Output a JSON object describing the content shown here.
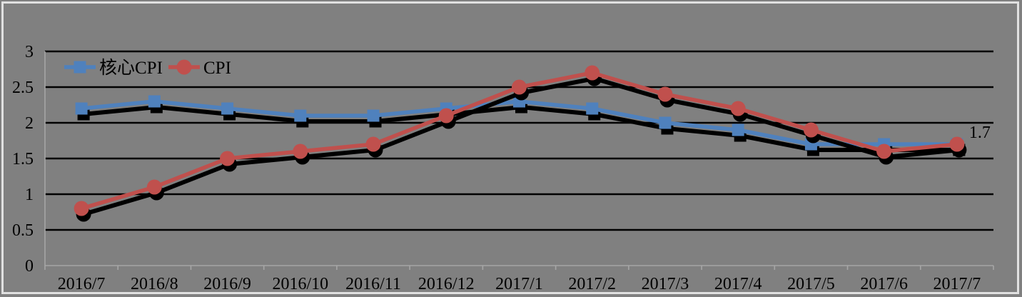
{
  "chart_data": {
    "type": "line",
    "title": "",
    "xlabel": "",
    "ylabel": "",
    "categories": [
      "2016/7",
      "2016/8",
      "2016/9",
      "2016/10",
      "2016/11",
      "2016/12",
      "2017/1",
      "2017/2",
      "2017/3",
      "2017/4",
      "2017/5",
      "2017/6",
      "2017/7"
    ],
    "series": [
      {
        "id": "core-cpi",
        "name": "核心CPI",
        "color": "#4f81bd",
        "marker": "square",
        "values": [
          2.2,
          2.3,
          2.2,
          2.1,
          2.1,
          2.2,
          2.3,
          2.2,
          2.0,
          1.9,
          1.7,
          1.7,
          1.7
        ]
      },
      {
        "id": "cpi",
        "name": "CPI",
        "color": "#c0504d",
        "marker": "circle",
        "values": [
          0.8,
          1.1,
          1.5,
          1.6,
          1.7,
          2.1,
          2.5,
          2.7,
          2.4,
          2.2,
          1.9,
          1.6,
          1.7
        ]
      }
    ],
    "ylim": [
      0,
      3
    ],
    "yticks": [
      "0",
      "0.5",
      "1",
      "1.5",
      "2",
      "2.5",
      "3"
    ],
    "grid": "horizontal-only",
    "legend_position": "top-left-inside",
    "annotations": [
      {
        "text": "1.7",
        "series": "cpi",
        "category": "2017/7",
        "position": "right-of-last-point"
      }
    ]
  },
  "style": {
    "background_color": "#808080",
    "gridline_color": "#000000",
    "axis_color": "#a6a6a6",
    "text_color": "#000000",
    "shadow_color": "#000000",
    "frame_border_color": "#e0e0e0"
  }
}
